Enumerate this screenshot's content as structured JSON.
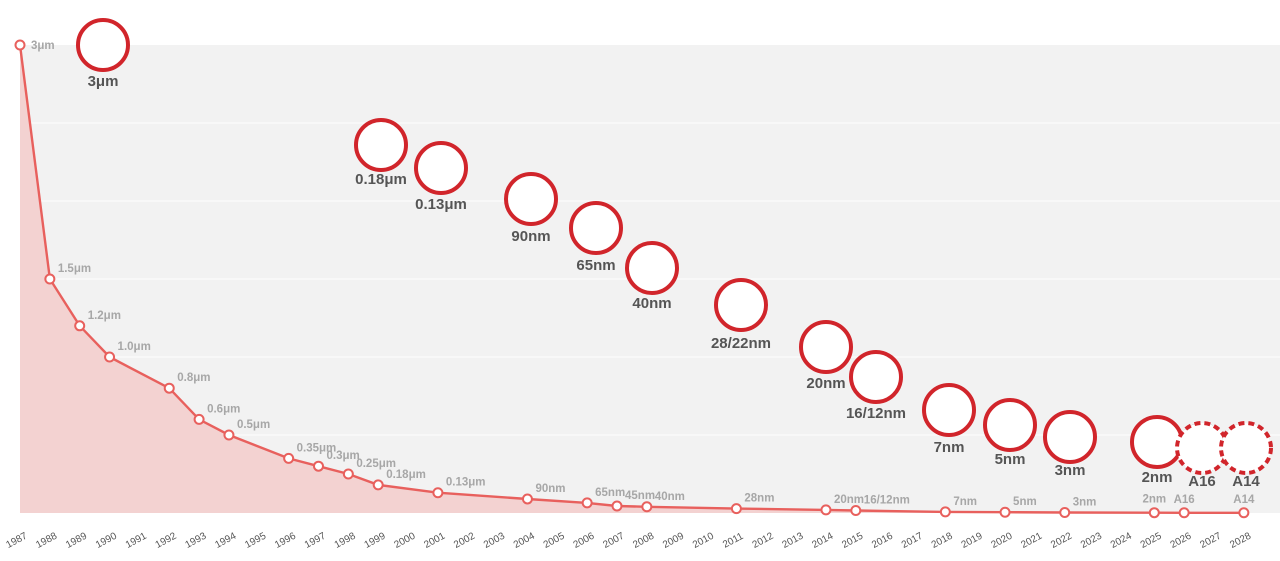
{
  "colors": {
    "line": "#e8605d",
    "area": "#f3d2d1",
    "ring": "#d1252b",
    "band": "#f2f2f2",
    "point_label": "#a7a7a7",
    "tick": "#555555"
  },
  "chart_data": {
    "type": "line",
    "title": "",
    "xlabel": "",
    "ylabel": "",
    "x_axis_years": [
      "1987",
      "1988",
      "1989",
      "1990",
      "1991",
      "1992",
      "1993",
      "1994",
      "1995",
      "1996",
      "1997",
      "1998",
      "1999",
      "2000",
      "2001",
      "2002",
      "2003",
      "2004",
      "2005",
      "2006",
      "2007",
      "2008",
      "2009",
      "2010",
      "2011",
      "2012",
      "2013",
      "2014",
      "2015",
      "2016",
      "2017",
      "2018",
      "2019",
      "2020",
      "2021",
      "2022",
      "2023",
      "2024",
      "2025",
      "2026",
      "2027",
      "2028"
    ],
    "ylim_um": [
      0,
      3
    ],
    "grid": "horizontal",
    "series": [
      {
        "points": [
          {
            "x": "1987",
            "y": 3,
            "label": "3μm"
          },
          {
            "x": "1988",
            "y": 1.5,
            "label": "1.5μm"
          },
          {
            "x": "1989",
            "y": 1.2,
            "label": "1.2μm"
          },
          {
            "x": "1990",
            "y": 1.0,
            "label": "1.0μm"
          },
          {
            "x": "1992",
            "y": 0.8,
            "label": "0.8μm"
          },
          {
            "x": "1993",
            "y": 0.6,
            "label": "0.6μm"
          },
          {
            "x": "1994",
            "y": 0.5,
            "label": "0.5μm"
          },
          {
            "x": "1996",
            "y": 0.35,
            "label": "0.35μm"
          },
          {
            "x": "1997",
            "y": 0.3,
            "label": "0.3μm"
          },
          {
            "x": "1998",
            "y": 0.25,
            "label": "0.25μm"
          },
          {
            "x": "1999",
            "y": 0.18,
            "label": "0.18μm"
          },
          {
            "x": "2001",
            "y": 0.13,
            "label": "0.13μm"
          },
          {
            "x": "2004",
            "y": 0.09,
            "label": "90nm"
          },
          {
            "x": "2006",
            "y": 0.065,
            "label": "65nm"
          },
          {
            "x": "2007",
            "y": 0.045,
            "label": "45nm"
          },
          {
            "x": "2008",
            "y": 0.04,
            "label": "40nm"
          },
          {
            "x": "2011",
            "y": 0.028,
            "label": "28nm"
          },
          {
            "x": "2014",
            "y": 0.02,
            "label": "20nm"
          },
          {
            "x": "2015",
            "y": 0.016,
            "label": "16/12nm"
          },
          {
            "x": "2018",
            "y": 0.007,
            "label": "7nm"
          },
          {
            "x": "2020",
            "y": 0.005,
            "label": "5nm"
          },
          {
            "x": "2022",
            "y": 0.003,
            "label": "3nm"
          },
          {
            "x": "2025",
            "y": 0.002,
            "label": "2nm"
          },
          {
            "x": "2026",
            "y": 0.0016,
            "label": "A16"
          },
          {
            "x": "2028",
            "y": 0.0014,
            "label": "A14"
          }
        ]
      }
    ],
    "image_nodes": [
      {
        "label": "3μm",
        "texture": "cross-section"
      },
      {
        "label": "0.18μm",
        "texture": "dark"
      },
      {
        "label": "0.13μm",
        "texture": "trench"
      },
      {
        "label": "90nm",
        "texture": "trench"
      },
      {
        "label": "65nm",
        "texture": "trench"
      },
      {
        "label": "40nm",
        "texture": "trench"
      },
      {
        "label": "28/22nm",
        "texture": "fins"
      },
      {
        "label": "20nm",
        "texture": "fins"
      },
      {
        "label": "16/12nm",
        "texture": "mesh"
      },
      {
        "label": "7nm",
        "texture": "mesh"
      },
      {
        "label": "5nm",
        "texture": "mesh"
      },
      {
        "label": "3nm",
        "texture": "stripes"
      },
      {
        "label": "2nm",
        "texture": "dark"
      },
      {
        "label": "A16",
        "texture": "grid",
        "future": true
      },
      {
        "label": "A14",
        "texture": "flat",
        "future": true
      }
    ]
  }
}
